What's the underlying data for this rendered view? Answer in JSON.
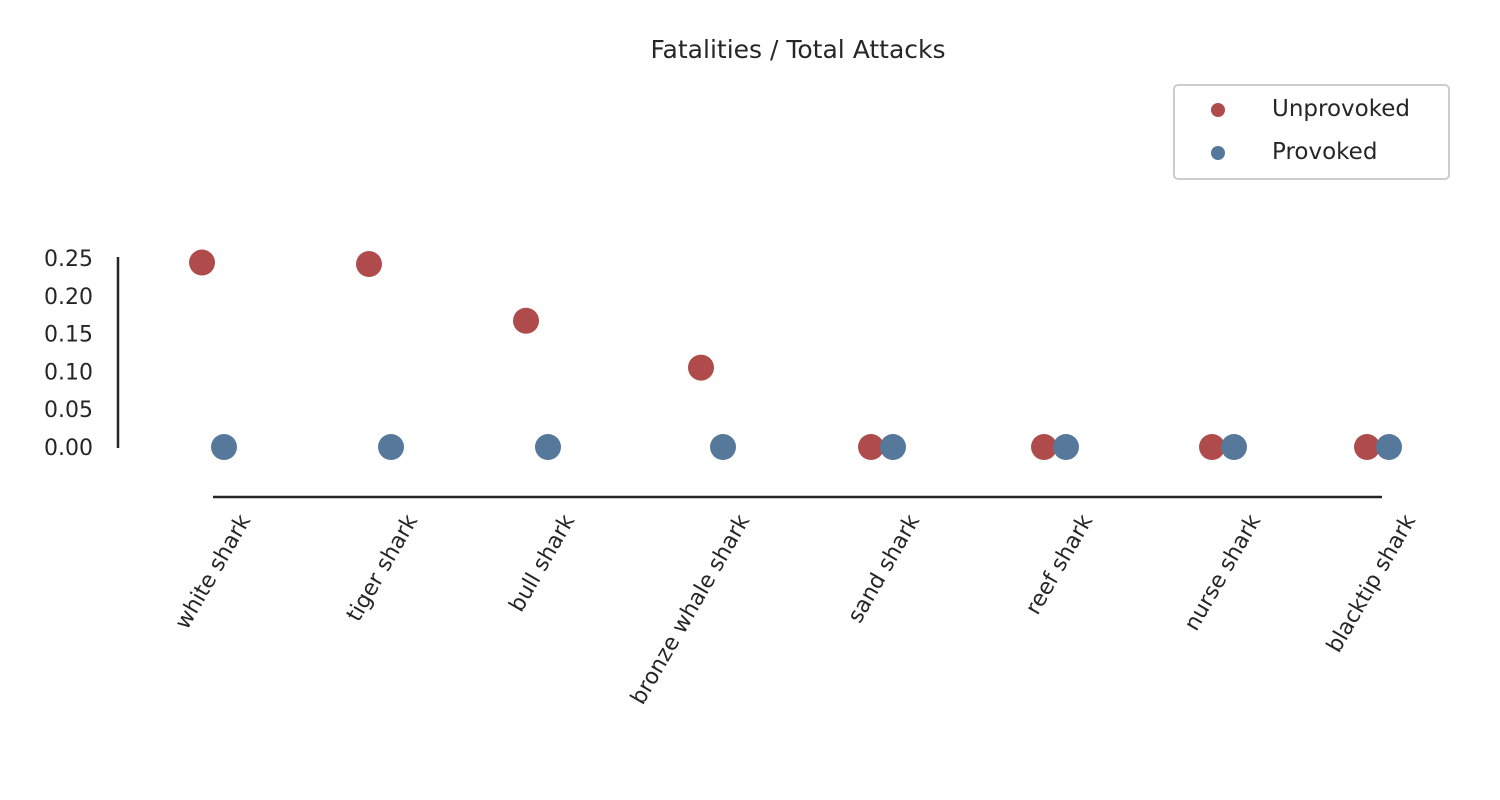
{
  "chart_data": {
    "type": "scatter",
    "title": "Fatalities / Total Attacks",
    "xlabel": "",
    "ylabel": "",
    "categories": [
      "white shark",
      "tiger shark",
      "bull shark",
      "bronze whale shark",
      "sand shark",
      "reef shark",
      "nurse shark",
      "blacktip shark"
    ],
    "y_ticks": [
      "0.00",
      "0.05",
      "0.10",
      "0.15",
      "0.20",
      "0.25"
    ],
    "ylim": [
      0,
      0.25
    ],
    "grid": false,
    "legend_position": "top-right",
    "series": [
      {
        "name": "Unprovoked",
        "color": "#b04b4b",
        "values": [
          0.244,
          0.242,
          0.167,
          0.105,
          0.0,
          0.0,
          0.0,
          0.0
        ]
      },
      {
        "name": "Provoked",
        "color": "#56789a",
        "values": [
          0.0,
          0.0,
          0.0,
          0.0,
          0.0,
          0.0,
          0.0,
          0.0
        ]
      }
    ]
  }
}
